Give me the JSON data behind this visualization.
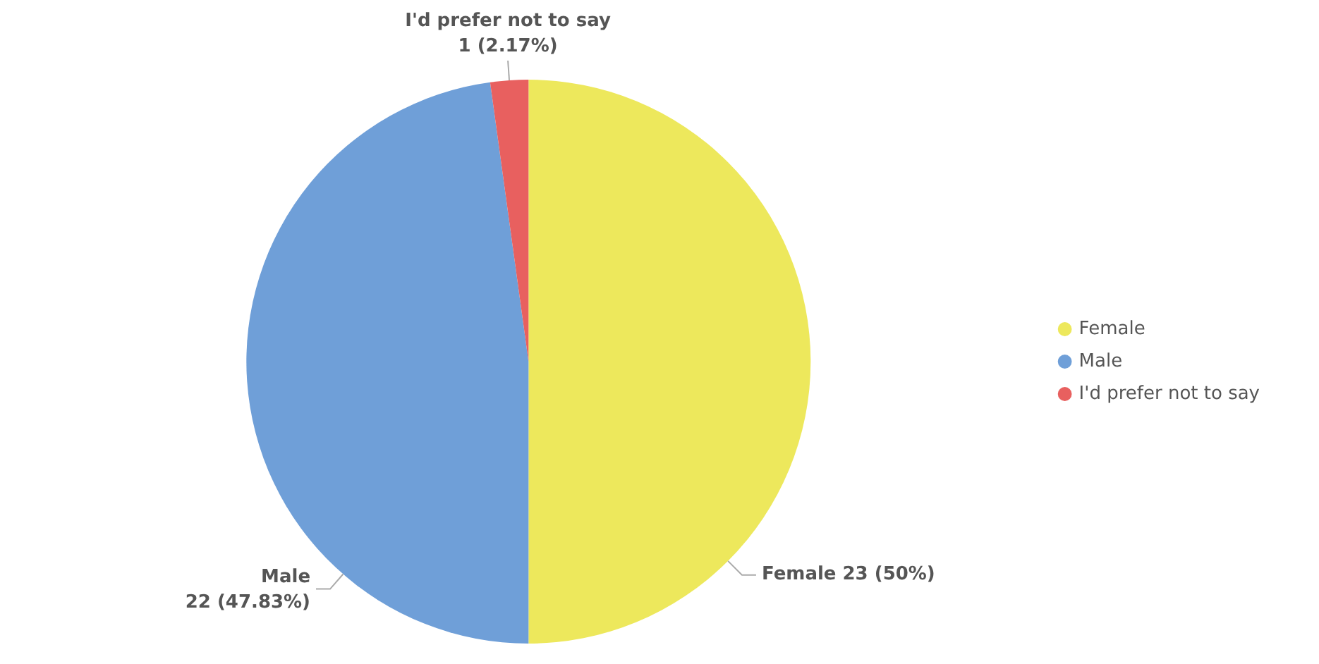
{
  "chart_data": {
    "type": "pie",
    "categories": [
      "Female",
      "Male",
      "I'd prefer not to say"
    ],
    "values": [
      23,
      22,
      1
    ],
    "colors": [
      "#ede85c",
      "#6f9fd8",
      "#e8605f"
    ],
    "value_labels": [
      "23 (50%)",
      "22 (47.83%)",
      "1 (2.17%)"
    ],
    "legend": "right"
  }
}
